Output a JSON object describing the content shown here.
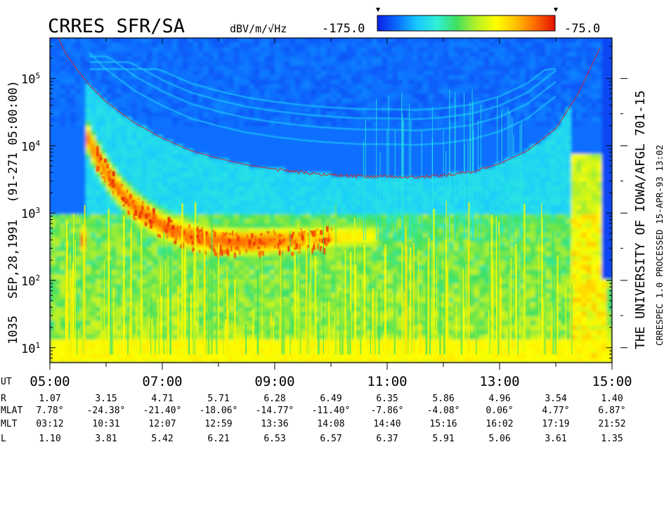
{
  "chart_data": {
    "type": "heatmap",
    "title": "CRRES SFR/SA",
    "colorbar": {
      "unit": "dBV/m/√Hz",
      "min_label": "-175.0",
      "max_label": "-75.0",
      "range": [
        -175.0,
        -75.0
      ],
      "colors": [
        "#0a1ee6",
        "#0a6cff",
        "#19c8ff",
        "#2ef0d8",
        "#40e060",
        "#b4f028",
        "#ffff00",
        "#ffc000",
        "#ff6a00",
        "#e01000"
      ]
    },
    "ylabel": "1035   SEP,28,1991   (91-271 05:00:00)",
    "ylabel_parts": [
      "1035",
      "SEP,28,1991",
      "(91-271 05:00:00)"
    ],
    "yscale": "log",
    "ylim": [
      6,
      400000
    ],
    "ytick_labels": [
      {
        "value": 10,
        "base": "10",
        "exp": "1"
      },
      {
        "value": 100,
        "base": "10",
        "exp": "2"
      },
      {
        "value": 1000,
        "base": "10",
        "exp": "3"
      },
      {
        "value": 10000,
        "base": "10",
        "exp": "4"
      },
      {
        "value": 100000,
        "base": "10",
        "exp": "5"
      }
    ],
    "right_labels": [
      "THE UNIVERSITY OF IOWA/AFGL 701-15",
      "CRRESPEC 1.0  PROCESSED 15-APR-93  13:02"
    ],
    "xlim": [
      "05:00",
      "15:00"
    ],
    "x_tick_labels": [
      "05:00",
      "07:00",
      "09:00",
      "11:00",
      "13:00",
      "15:00"
    ],
    "ephemeris": {
      "labels": [
        "UT",
        "R",
        "MLAT",
        "MLT",
        "L"
      ],
      "R": [
        "1.07",
        "3.15",
        "4.71",
        "5.71",
        "6.28",
        "6.49",
        "6.35",
        "5.86",
        "4.96",
        "3.54",
        "1.40"
      ],
      "MLAT": [
        "7.78°",
        "-24.38°",
        "-21.40°",
        "-18.06°",
        "-14.77°",
        "-11.40°",
        "-7.86°",
        "-4.08°",
        "0.06°",
        "4.77°",
        "6.87°"
      ],
      "MLT": [
        "03:12",
        "10:31",
        "12:07",
        "12:59",
        "13:36",
        "14:08",
        "14:40",
        "15:16",
        "16:02",
        "17:19",
        "21:52"
      ],
      "L": [
        "1.10",
        "3.81",
        "5.42",
        "6.21",
        "6.53",
        "6.57",
        "6.37",
        "5.91",
        "5.06",
        "3.61",
        "1.35"
      ]
    },
    "electron_cyclotron_trace": {
      "ut_hours": [
        5.15,
        5.3,
        5.5,
        5.7,
        6.0,
        6.5,
        7.0,
        7.5,
        8.0,
        8.5,
        9.0,
        9.5,
        10.0,
        10.5,
        11.0,
        11.5,
        12.0,
        12.5,
        13.0,
        13.5,
        14.0,
        14.4,
        14.8
      ],
      "freq_hz": [
        400000,
        220000,
        130000,
        80000,
        45000,
        22000,
        13000,
        8500,
        6500,
        5200,
        4500,
        4000,
        3700,
        3500,
        3500,
        3400,
        3600,
        4100,
        5400,
        8500,
        18000,
        60000,
        300000
      ]
    }
  }
}
